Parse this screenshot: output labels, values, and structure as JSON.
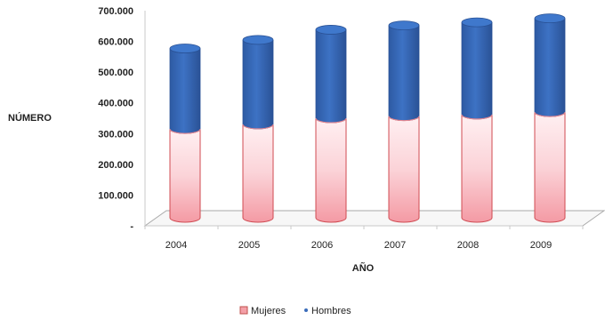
{
  "chart_data": {
    "type": "bar",
    "stacked": true,
    "style": "3d-cylinder",
    "categories": [
      "2004",
      "2005",
      "2006",
      "2007",
      "2008",
      "2009"
    ],
    "series": [
      {
        "name": "Mujeres",
        "values": [
          315000,
          330000,
          350000,
          357000,
          362000,
          370000
        ],
        "color": "#f4a0a8"
      },
      {
        "name": "Hombres",
        "values": [
          262000,
          275000,
          288000,
          295000,
          300000,
          305000
        ],
        "color": "#3a6cba"
      }
    ],
    "xlabel": "AÑO",
    "ylabel": "NÚMERO",
    "ylim": [
      0,
      700000
    ],
    "yticks": [
      "-",
      "100.000",
      "200.000",
      "300.000",
      "400.000",
      "500.000",
      "600.000",
      "700.000"
    ],
    "grid": false,
    "legend_position": "bottom"
  }
}
